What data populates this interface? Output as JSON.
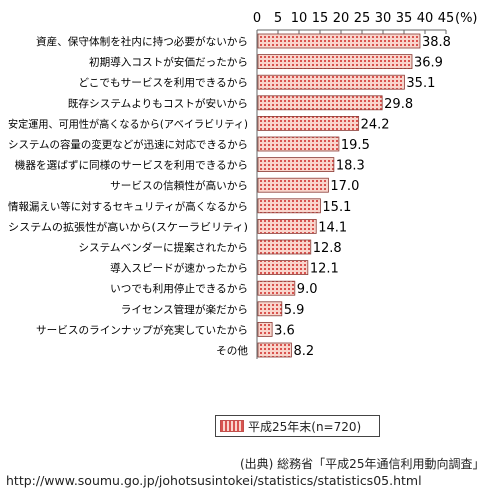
{
  "chart_data": {
    "type": "bar",
    "orientation": "horizontal",
    "unit_label": "(%)",
    "xlim": [
      0,
      45
    ],
    "xticks": [
      0,
      5,
      10,
      15,
      20,
      25,
      30,
      35,
      40,
      45
    ],
    "categories": [
      "資産、保守体制を社内に持つ必要がないから",
      "初期導入コストが安価だったから",
      "どこでもサービスを利用できるから",
      "既存システムよりもコストが安いから",
      "安定運用、可用性が高くなるから(アベイラビリティ)",
      "システムの容量の変更などが迅速に対応できるから",
      "機器を選ばずに同様のサービスを利用できるから",
      "サービスの信頼性が高いから",
      "情報漏えい等に対するセキュリティが高くなるから",
      "システムの拡張性が高いから(スケーラビリティ)",
      "システムベンダーに提案されたから",
      "導入スピードが速かったから",
      "いつでも利用停止できるから",
      "ライセンス管理が楽だから",
      "サービスのラインナップが充実していたから",
      "その他"
    ],
    "series": [
      {
        "name": "平成25年末(n=720)",
        "values": [
          38.8,
          36.9,
          35.1,
          29.8,
          24.2,
          19.5,
          18.3,
          17.0,
          15.1,
          14.1,
          12.8,
          12.1,
          9.0,
          5.9,
          3.6,
          8.2
        ],
        "value_labels": [
          "38.8",
          "36.9",
          "35.1",
          "29.8",
          "24.2",
          "19.5",
          "18.3",
          "17.0",
          "15.1",
          "14.1",
          "12.8",
          "12.1",
          "9.0",
          "5.9",
          "3.6",
          "8.2"
        ]
      }
    ],
    "legend_position": "bottom-right",
    "grid": false
  },
  "colors": {
    "bar_fill": "#f7c9c0",
    "bar_pattern": "#d9534f",
    "axis": "#666666"
  },
  "source": {
    "line1": "(出典) 総務省「平成25年通信利用動向調査」",
    "line2": "http://www.soumu.go.jp/johotsusintokei/statistics/statistics05.html"
  }
}
